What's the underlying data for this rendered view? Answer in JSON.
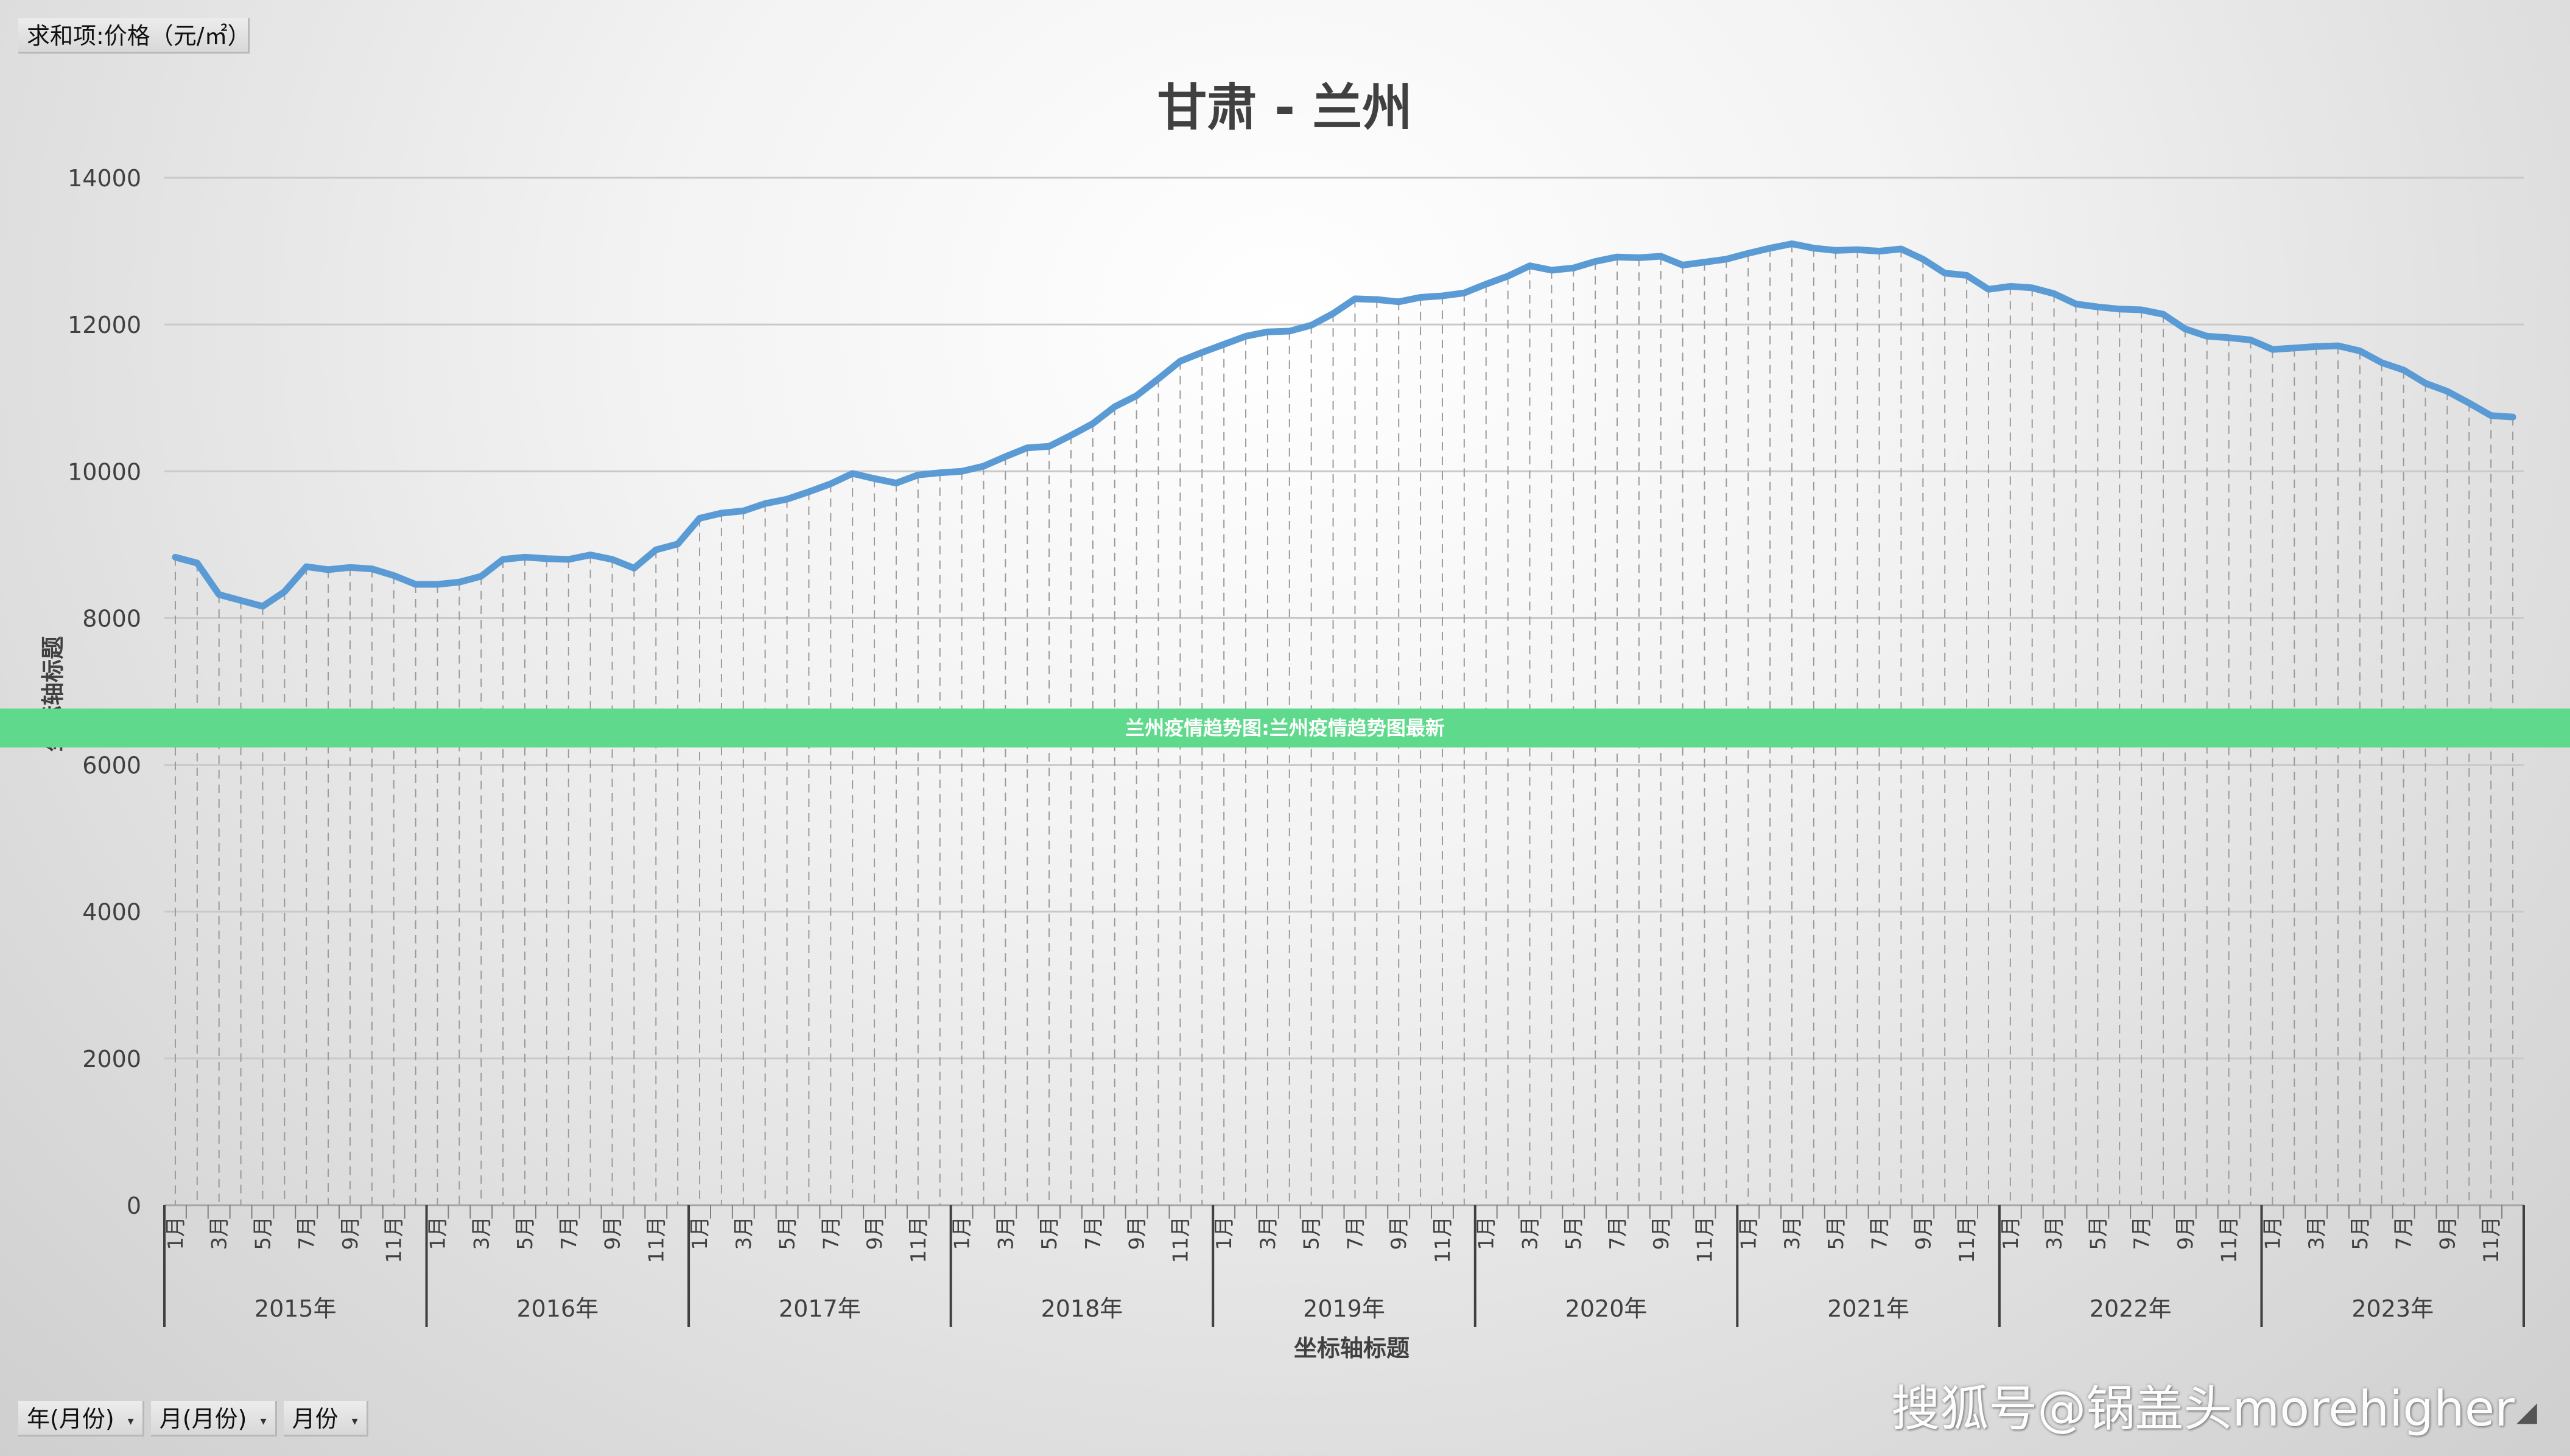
{
  "pivot": {
    "value_field": "求和项:价格（元/㎡）",
    "row_fields": [
      "年(月份)",
      "月(月份)",
      "月份"
    ]
  },
  "banner": {
    "text": "兰州疫情趋势图:兰州疫情趋势图最新"
  },
  "watermark": {
    "text": "搜狐号@锅盖头morehigher"
  },
  "chart_data": {
    "type": "line",
    "title": "甘肃 - 兰州",
    "xlabel": "坐标轴标题",
    "ylabel": "坐标轴标题",
    "ylim": [
      0,
      14000
    ],
    "yticks": [
      0,
      2000,
      4000,
      6000,
      8000,
      10000,
      12000,
      14000
    ],
    "grid": true,
    "line_color": "#5b9bd5",
    "years": [
      "2015年",
      "2016年",
      "2017年",
      "2018年",
      "2019年",
      "2020年",
      "2021年",
      "2022年",
      "2023年"
    ],
    "month_labels": [
      "1月",
      "3月",
      "5月",
      "7月",
      "9月",
      "11月"
    ],
    "series": [
      {
        "values": [
          8830,
          8750,
          8320,
          8240,
          8160,
          8360,
          8700,
          8660,
          8690,
          8670,
          8580,
          8460,
          8460,
          8490,
          8570,
          8800,
          8830,
          8810,
          8800,
          8860,
          8800,
          8680,
          8930,
          9010,
          9360,
          9430,
          9460,
          9560,
          9620,
          9720,
          9830,
          9970,
          9900,
          9840,
          9950,
          9980,
          10000,
          10070,
          10200,
          10320,
          10340,
          10490,
          10650,
          10880,
          11030,
          11260,
          11500,
          11620,
          11730,
          11840,
          11900,
          11910,
          11990,
          12150,
          12350,
          12340,
          12310,
          12370,
          12390,
          12430,
          12550,
          12660,
          12800,
          12740,
          12770,
          12860,
          12920,
          12910,
          12930,
          12810,
          12850,
          12890,
          12970,
          13040,
          13100,
          13040,
          13010,
          13020,
          13000,
          13030,
          12890,
          12700,
          12670,
          12480,
          12520,
          12500,
          12420,
          12280,
          12240,
          12210,
          12200,
          12140,
          11940,
          11840,
          11820,
          11790,
          11660,
          11680,
          11700,
          11710,
          11640,
          11480,
          11380,
          11200,
          11090,
          10930,
          10760,
          10740
        ]
      }
    ]
  }
}
